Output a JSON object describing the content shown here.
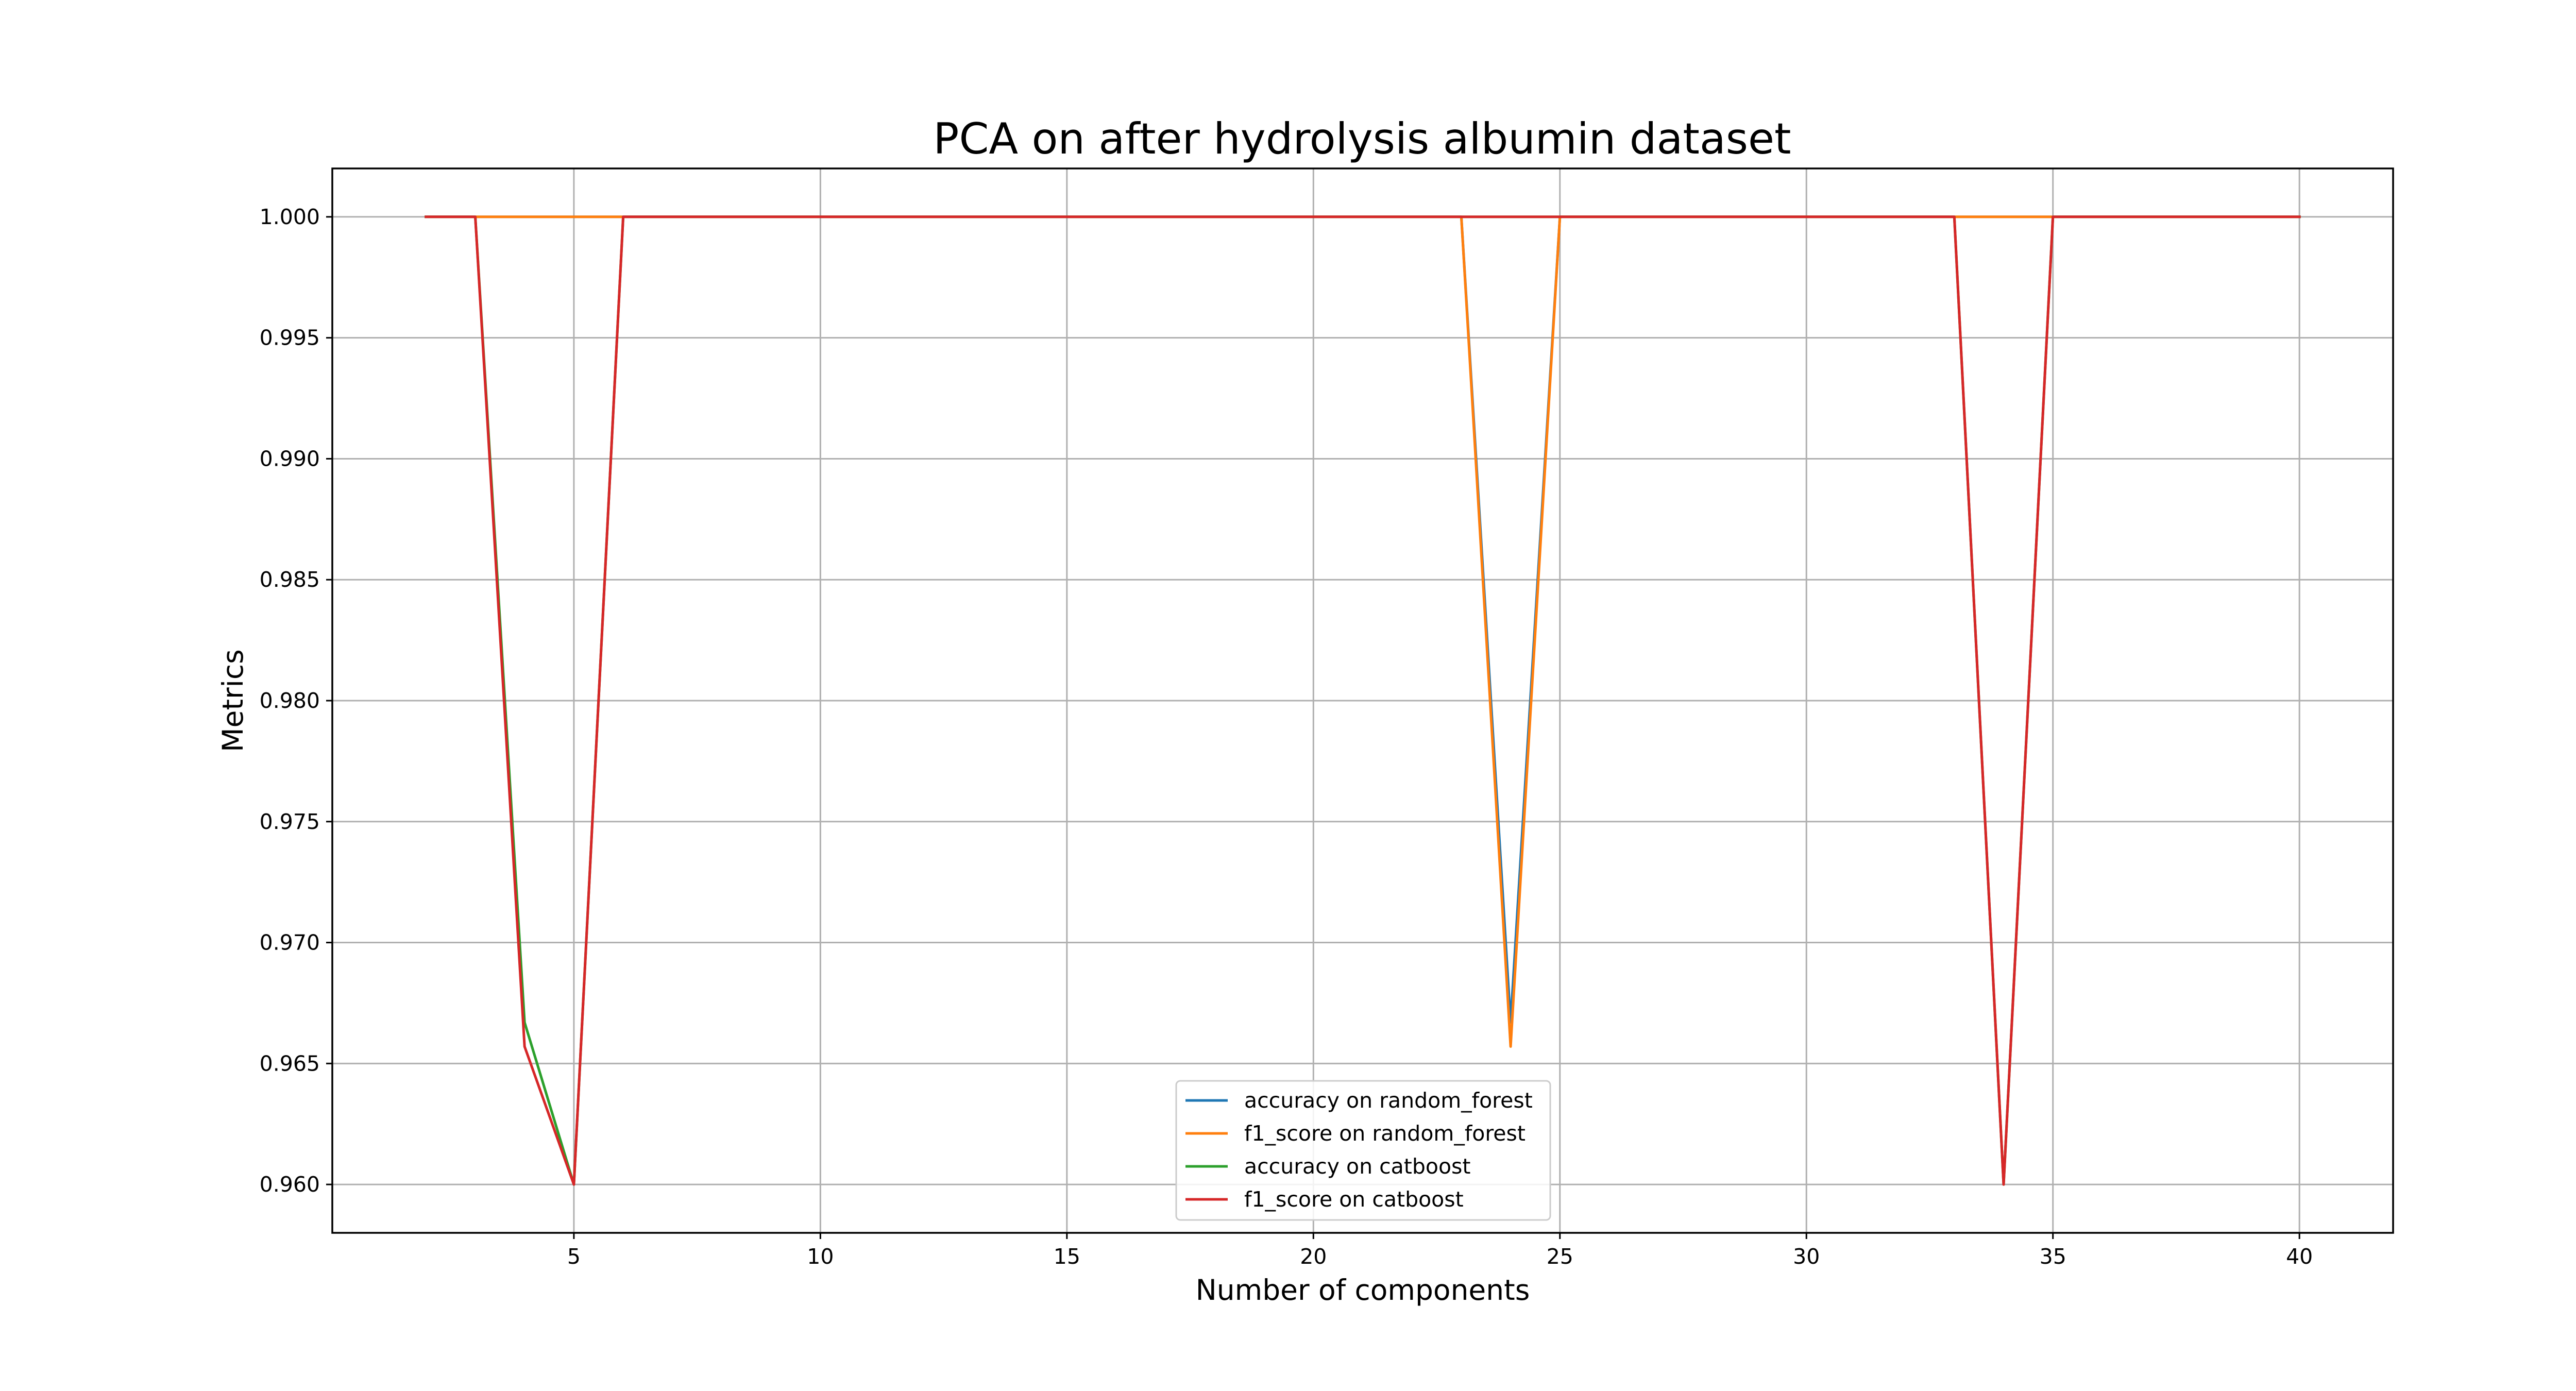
{
  "chart_data": {
    "type": "line",
    "title": "PCA on after hydrolysis albumin dataset",
    "xlabel": "Number of components",
    "ylabel": "Metrics",
    "xlim": [
      0.1,
      41.9
    ],
    "ylim": [
      0.958,
      1.002
    ],
    "xticks": [
      5,
      10,
      15,
      20,
      25,
      30,
      35,
      40
    ],
    "xtick_labels": [
      "5",
      "10",
      "15",
      "20",
      "25",
      "30",
      "35",
      "40"
    ],
    "yticks": [
      0.96,
      0.965,
      0.97,
      0.975,
      0.98,
      0.985,
      0.99,
      0.995,
      1.0
    ],
    "ytick_labels": [
      "0.960",
      "0.965",
      "0.970",
      "0.975",
      "0.980",
      "0.985",
      "0.990",
      "0.995",
      "1.000"
    ],
    "grid": true,
    "legend_position": "lower-center",
    "x": [
      2,
      3,
      4,
      5,
      6,
      7,
      8,
      9,
      10,
      11,
      12,
      13,
      14,
      15,
      16,
      17,
      18,
      19,
      20,
      21,
      22,
      23,
      24,
      25,
      26,
      27,
      28,
      29,
      30,
      31,
      32,
      33,
      34,
      35,
      36,
      37,
      38,
      39,
      40
    ],
    "series": [
      {
        "name": "accuracy on random_forest",
        "color": "#1f77b4",
        "values": [
          1,
          1,
          1,
          1,
          1,
          1,
          1,
          1,
          1,
          1,
          1,
          1,
          1,
          1,
          1,
          1,
          1,
          1,
          1,
          1,
          1,
          1,
          0.9667,
          1,
          1,
          1,
          1,
          1,
          1,
          1,
          1,
          1,
          1,
          1,
          1,
          1,
          1,
          1,
          1
        ]
      },
      {
        "name": "f1_score on random_forest",
        "color": "#ff7f0e",
        "values": [
          1,
          1,
          1,
          1,
          1,
          1,
          1,
          1,
          1,
          1,
          1,
          1,
          1,
          1,
          1,
          1,
          1,
          1,
          1,
          1,
          1,
          1,
          0.9657,
          1,
          1,
          1,
          1,
          1,
          1,
          1,
          1,
          1,
          1,
          1,
          1,
          1,
          1,
          1,
          1
        ]
      },
      {
        "name": "accuracy on catboost",
        "color": "#2ca02c",
        "values": [
          1,
          1,
          0.9667,
          0.96,
          1,
          1,
          1,
          1,
          1,
          1,
          1,
          1,
          1,
          1,
          1,
          1,
          1,
          1,
          1,
          1,
          1,
          1,
          1,
          1,
          1,
          1,
          1,
          1,
          1,
          1,
          1,
          1,
          0.96,
          1,
          1,
          1,
          1,
          1,
          1
        ]
      },
      {
        "name": "f1_score on catboost",
        "color": "#d62728",
        "values": [
          1,
          1,
          0.9657,
          0.96,
          1,
          1,
          1,
          1,
          1,
          1,
          1,
          1,
          1,
          1,
          1,
          1,
          1,
          1,
          1,
          1,
          1,
          1,
          1,
          1,
          1,
          1,
          1,
          1,
          1,
          1,
          1,
          1,
          0.96,
          1,
          1,
          1,
          1,
          1,
          1
        ]
      }
    ]
  }
}
